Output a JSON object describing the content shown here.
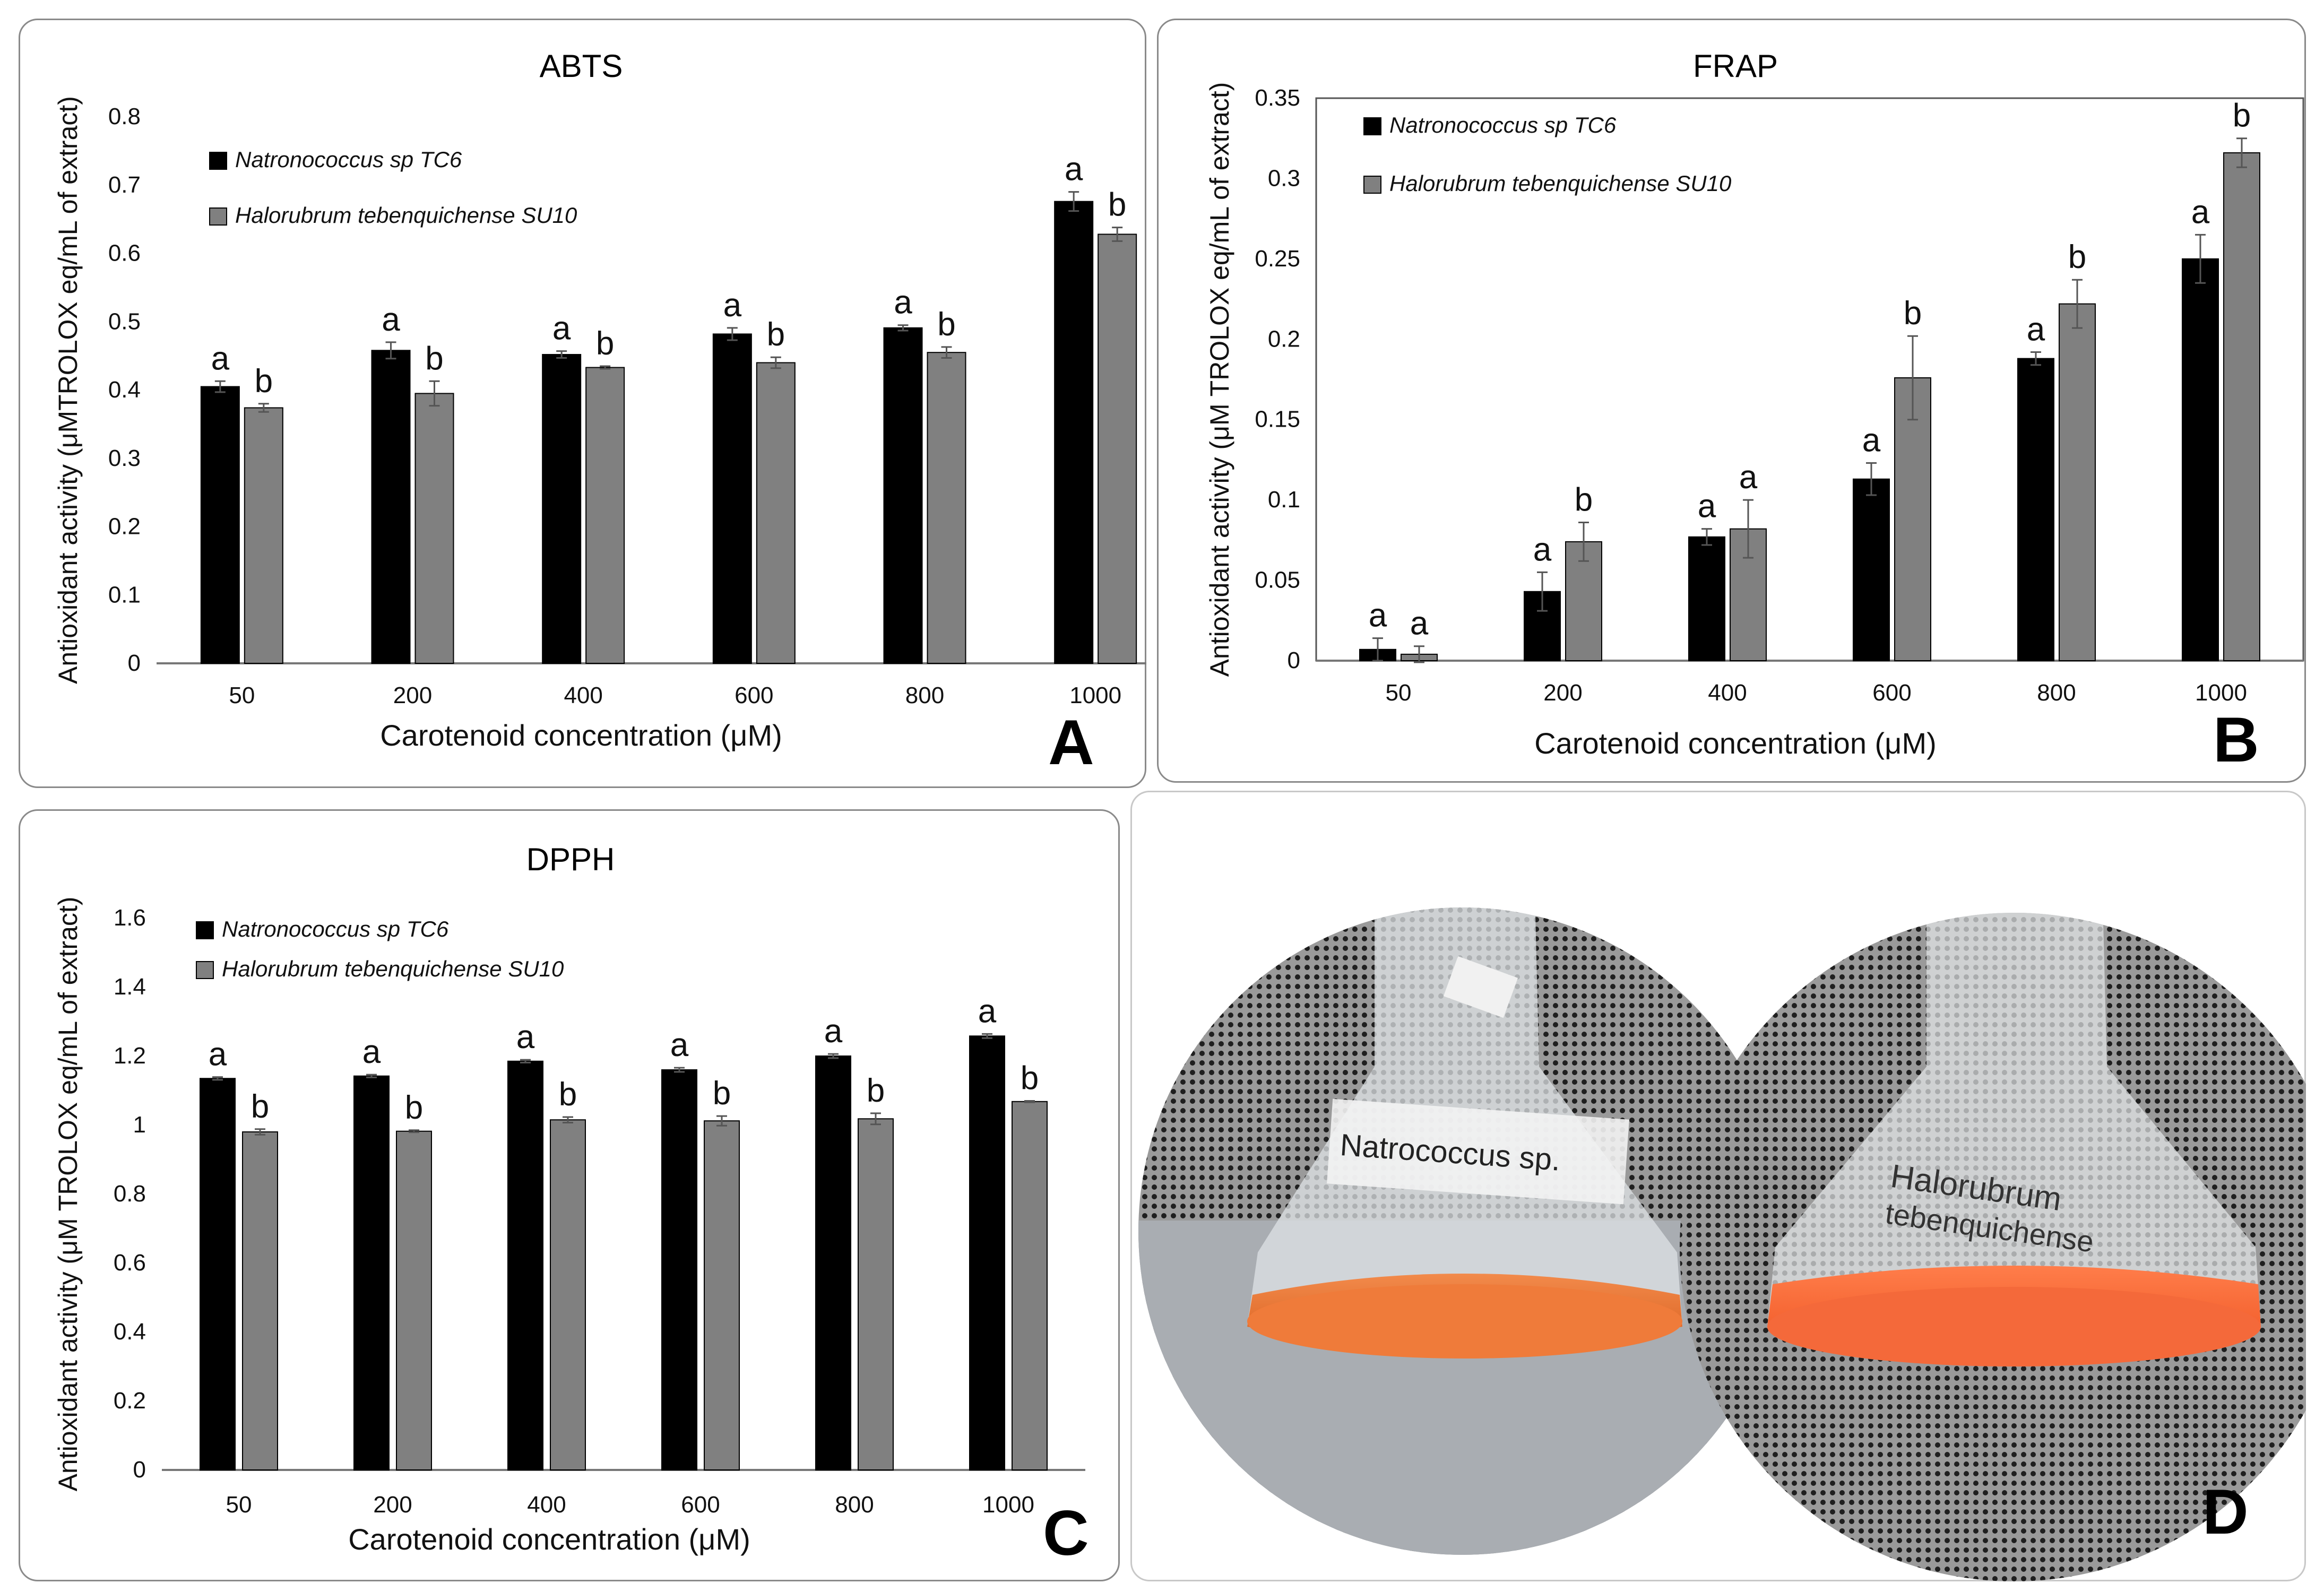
{
  "legend": {
    "series1": "Natronococcus sp TC6",
    "series2": "Halorubrum tebenquichense SU10"
  },
  "colors": {
    "series1": "#000000",
    "series2": "#808080",
    "bg": "#ffffff",
    "orange": "#f07a38"
  },
  "chart_data": [
    {
      "id": "A",
      "panel_letter": "A",
      "type": "bar",
      "title": "ABTS",
      "xlabel": "Carotenoid concentration (μM)",
      "ylabel": "Antioxidant activity (μMTROLOX eq/mL of extract)",
      "categories": [
        "50",
        "200",
        "400",
        "600",
        "800",
        "1000"
      ],
      "ylim": [
        0,
        0.8
      ],
      "yticks": [
        "0",
        "0.1",
        "0.2",
        "0.3",
        "0.4",
        "0.5",
        "0.6",
        "0.7",
        "0.8"
      ],
      "series": [
        {
          "name": "Natronococcus sp TC6",
          "values": [
            0.405,
            0.458,
            0.452,
            0.482,
            0.491,
            0.676
          ],
          "errors": [
            0.008,
            0.012,
            0.005,
            0.009,
            0.004,
            0.014
          ],
          "labels": [
            "a",
            "a",
            "a",
            "a",
            "a",
            "a"
          ]
        },
        {
          "name": "Halorubrum tebenquichense SU10",
          "values": [
            0.374,
            0.395,
            0.433,
            0.44,
            0.455,
            0.628
          ],
          "errors": [
            0.006,
            0.018,
            0.002,
            0.008,
            0.008,
            0.01
          ],
          "labels": [
            "b",
            "b",
            "b",
            "b",
            "b",
            "b"
          ]
        }
      ]
    },
    {
      "id": "B",
      "panel_letter": "B",
      "type": "bar",
      "title": "FRAP",
      "xlabel": "Carotenoid concentration (μM)",
      "ylabel": "Antioxidant activity (μM TROLOX eq/mL of extract)",
      "categories": [
        "50",
        "200",
        "400",
        "600",
        "800",
        "1000"
      ],
      "ylim": [
        0,
        0.35
      ],
      "yticks": [
        "0",
        "0.05",
        "0.1",
        "0.15",
        "0.2",
        "0.25",
        "0.3",
        "0.35"
      ],
      "series": [
        {
          "name": "Natronococcus sp TC6",
          "values": [
            0.007,
            0.043,
            0.077,
            0.113,
            0.188,
            0.25
          ],
          "errors": [
            0.007,
            0.012,
            0.005,
            0.01,
            0.004,
            0.015
          ],
          "labels": [
            "a",
            "a",
            "a",
            "a",
            "a",
            "a"
          ]
        },
        {
          "name": "Halorubrum tebenquichense SU10",
          "values": [
            0.004,
            0.074,
            0.082,
            0.176,
            0.222,
            0.316
          ],
          "errors": [
            0.005,
            0.012,
            0.018,
            0.026,
            0.015,
            0.009
          ],
          "labels": [
            "a",
            "b",
            "a",
            "b",
            "b",
            "b"
          ]
        }
      ]
    },
    {
      "id": "C",
      "panel_letter": "C",
      "type": "bar",
      "title": "DPPH",
      "xlabel": "Carotenoid concentration (μM)",
      "ylabel": "Antioxidant activity (μM TROLOX eq/mL of extract)",
      "categories": [
        "50",
        "200",
        "400",
        "600",
        "800",
        "1000"
      ],
      "ylim": [
        0,
        1.6
      ],
      "yticks": [
        "0",
        "0.2",
        "0.4",
        "0.6",
        "0.8",
        "1",
        "1.2",
        "1.4",
        "1.6"
      ],
      "series": [
        {
          "name": "Natronococcus sp TC6",
          "values": [
            1.135,
            1.142,
            1.185,
            1.16,
            1.2,
            1.258
          ],
          "errors": [
            0.004,
            0.004,
            0.004,
            0.006,
            0.006,
            0.006
          ],
          "labels": [
            "a",
            "a",
            "a",
            "a",
            "a",
            "a"
          ]
        },
        {
          "name": "Halorubrum tebenquichense SU10",
          "values": [
            0.98,
            0.982,
            1.015,
            1.012,
            1.018,
            1.068
          ],
          "errors": [
            0.008,
            0.003,
            0.008,
            0.014,
            0.016,
            0.002
          ],
          "labels": [
            "b",
            "b",
            "b",
            "b",
            "b",
            "b"
          ]
        }
      ]
    }
  ],
  "photo": {
    "panel_letter": "D",
    "flask1_label": "Natrococcus sp.",
    "flask2_label_line1": "Halorubrum",
    "flask2_label_line2": "tebenquichense"
  }
}
